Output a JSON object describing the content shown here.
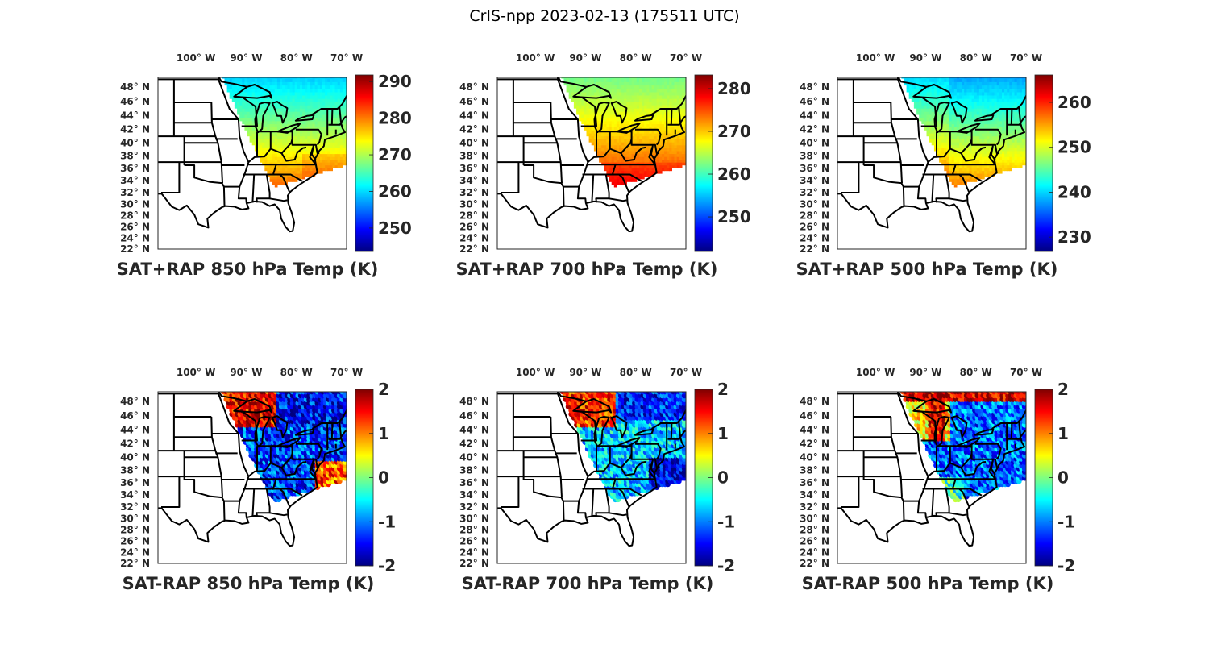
{
  "figure_title": "CrIS-npp 2023-02-13 (175511 UTC)",
  "lon_labels": [
    "100° W",
    "90° W",
    "80° W",
    "70° W"
  ],
  "lat_labels": [
    "48° N",
    "46° N",
    "44° N",
    "42° N",
    "40° N",
    "38° N",
    "36° N",
    "34° N",
    "32° N",
    "30° N",
    "28° N",
    "26° N",
    "24° N",
    "22° N"
  ],
  "panels": [
    {
      "title": "SAT+RAP 850 hPa Temp (K)",
      "clim": [
        243.6,
        291.8
      ],
      "ticks": [
        "250",
        "260",
        "270",
        "280",
        "290"
      ],
      "tick_values": [
        250,
        260,
        270,
        280,
        290
      ]
    },
    {
      "title": "SAT+RAP 700 hPa Temp (K)",
      "clim": [
        241.9,
        283.2
      ],
      "ticks": [
        "250",
        "260",
        "270",
        "280"
      ],
      "tick_values": [
        250,
        260,
        270,
        280
      ]
    },
    {
      "title": "SAT+RAP 500 hPa Temp (K)",
      "clim": [
        226.8,
        266.1
      ],
      "ticks": [
        "230",
        "240",
        "250",
        "260"
      ],
      "tick_values": [
        230,
        240,
        250,
        260
      ]
    },
    {
      "title": "SAT-RAP 850 hPa Temp (K)",
      "clim": [
        -2,
        2
      ],
      "ticks": [
        "-2",
        "-1",
        "0",
        "1",
        "2"
      ],
      "tick_values": [
        -2,
        -1,
        0,
        1,
        2
      ]
    },
    {
      "title": "SAT-RAP 700 hPa Temp (K)",
      "clim": [
        -2,
        2
      ],
      "ticks": [
        "-2",
        "-1",
        "0",
        "1",
        "2"
      ],
      "tick_values": [
        -2,
        -1,
        0,
        1,
        2
      ]
    },
    {
      "title": "SAT-RAP 500 hPa Temp (K)",
      "clim": [
        -2,
        2
      ],
      "ticks": [
        "-2",
        "-1",
        "0",
        "1",
        "2"
      ],
      "tick_values": [
        -2,
        -1,
        0,
        1,
        2
      ]
    }
  ]
}
